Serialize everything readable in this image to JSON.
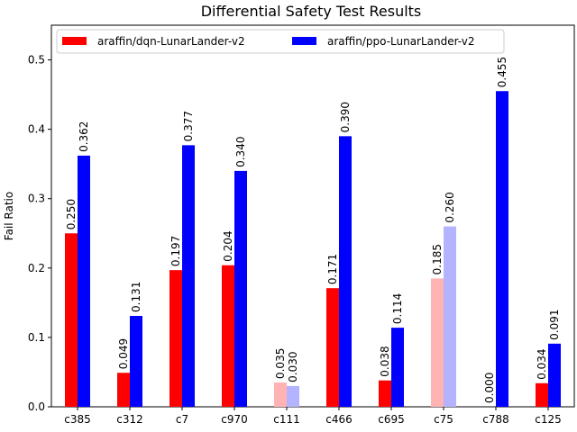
{
  "chart_data": {
    "type": "bar",
    "title": "Differential Safety Test Results",
    "xlabel": "",
    "ylabel": "Fail Ratio",
    "ylim": [
      0,
      0.55
    ],
    "yticks": [
      0.0,
      0.1,
      0.2,
      0.3,
      0.4,
      0.5
    ],
    "ytick_labels": [
      "0.0",
      "0.1",
      "0.2",
      "0.3",
      "0.4",
      "0.5"
    ],
    "grid": false,
    "legend_position": "top",
    "categories": [
      "c385",
      "c312",
      "c7",
      "c970",
      "c111",
      "c466",
      "c695",
      "c75",
      "c788",
      "c125"
    ],
    "series": [
      {
        "name": "araffin/dqn-LunarLander-v2",
        "color": "#ff0000",
        "faded_color": "#ffb3b3",
        "values": [
          0.25,
          0.049,
          0.197,
          0.204,
          0.035,
          0.171,
          0.038,
          0.185,
          0.0,
          0.034
        ],
        "labels": [
          "0.250",
          "0.049",
          "0.197",
          "0.204",
          "0.035",
          "0.171",
          "0.038",
          "0.185",
          "0.000",
          "0.034"
        ]
      },
      {
        "name": "araffin/ppo-LunarLander-v2",
        "color": "#0000ff",
        "faded_color": "#b3b3ff",
        "values": [
          0.362,
          0.131,
          0.377,
          0.34,
          0.03,
          0.39,
          0.114,
          0.26,
          0.455,
          0.091
        ],
        "labels": [
          "0.362",
          "0.131",
          "0.377",
          "0.340",
          "0.030",
          "0.390",
          "0.114",
          "0.260",
          "0.455",
          "0.091"
        ]
      }
    ],
    "faded_categories": [
      "c111",
      "c75"
    ]
  }
}
